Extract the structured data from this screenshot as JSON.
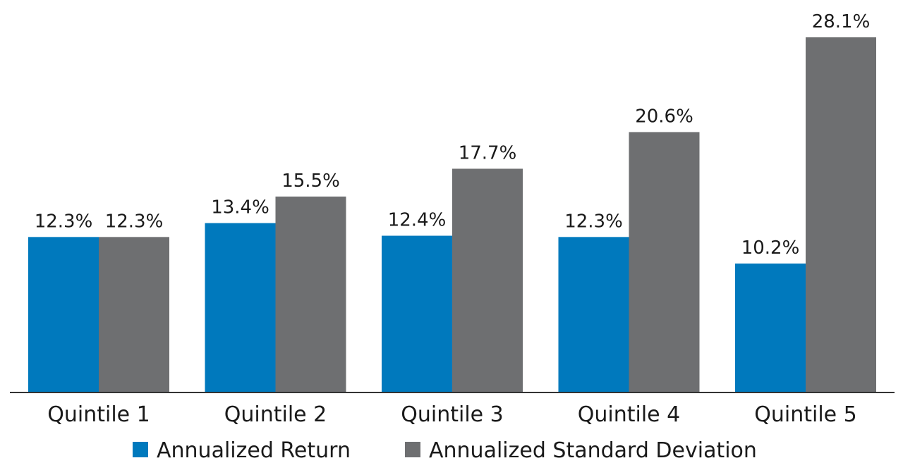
{
  "chart_data": {
    "type": "bar",
    "title": "",
    "xlabel": "",
    "ylabel": "",
    "categories": [
      "Quintile 1",
      "Quintile 2",
      "Quintile 3",
      "Quintile 4",
      "Quintile 5"
    ],
    "series": [
      {
        "name": "Annualized Return",
        "color": "#0079BD",
        "values": [
          12.3,
          13.4,
          12.4,
          12.3,
          10.2
        ],
        "labels": [
          "12.3%",
          "13.4%",
          "12.4%",
          "12.3%",
          "10.2%"
        ]
      },
      {
        "name": "Annualized Standard Deviation",
        "color": "#6E6F71",
        "values": [
          12.3,
          15.5,
          17.7,
          20.6,
          28.1
        ],
        "labels": [
          "12.3%",
          "15.5%",
          "17.7%",
          "20.6%",
          "28.1%"
        ]
      }
    ],
    "ylim": [
      0,
      30
    ],
    "grid": false,
    "legend_position": "bottom"
  }
}
